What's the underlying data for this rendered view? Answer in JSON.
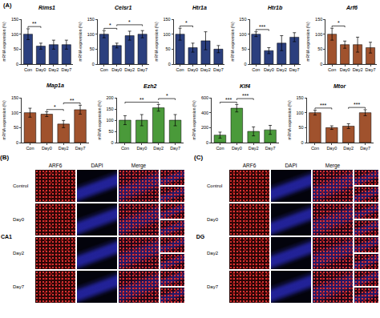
{
  "chart_data": [
    {
      "type": "bar",
      "title": "Rims1",
      "y_label": "mRNA expression (%)",
      "categories": [
        "Con",
        "Day0",
        "Day2",
        "Day7"
      ],
      "values": [
        100,
        60,
        65,
        65
      ],
      "errors": [
        18,
        10,
        15,
        15
      ],
      "color": "#2b3f7e",
      "ylim": [
        0,
        150
      ],
      "yticks": [
        0,
        50,
        100,
        150
      ],
      "grid": false,
      "significance": [
        {
          "from": "Con",
          "to": "Day0",
          "label": "**"
        }
      ]
    },
    {
      "type": "bar",
      "title": "Celsr1",
      "y_label": "mRNA expression (%)",
      "categories": [
        "Con",
        "Day0",
        "Day2",
        "Day7"
      ],
      "values": [
        100,
        62,
        95,
        100
      ],
      "errors": [
        12,
        8,
        15,
        12
      ],
      "color": "#2b3f7e",
      "ylim": [
        0,
        150
      ],
      "yticks": [
        0,
        50,
        100,
        150
      ],
      "grid": false,
      "significance": [
        {
          "from": "Con",
          "to": "Day0",
          "label": "*"
        },
        {
          "from": "Day0",
          "to": "Day7",
          "label": "*"
        }
      ]
    },
    {
      "type": "bar",
      "title": "Htr1a",
      "y_label": "mRNA expression (%)",
      "categories": [
        "Con",
        "Day0",
        "Day2",
        "Day7"
      ],
      "values": [
        100,
        55,
        78,
        50
      ],
      "errors": [
        20,
        15,
        30,
        12
      ],
      "color": "#2b3f7e",
      "ylim": [
        0,
        150
      ],
      "yticks": [
        0,
        50,
        100,
        150
      ],
      "grid": false,
      "significance": [
        {
          "from": "Con",
          "to": "Day0",
          "label": "*"
        }
      ]
    },
    {
      "type": "bar",
      "title": "Htr1b",
      "y_label": "mRNA expression (%)",
      "categories": [
        "Con",
        "Day0",
        "Day2",
        "Day7"
      ],
      "values": [
        100,
        45,
        70,
        90
      ],
      "errors": [
        8,
        10,
        25,
        15
      ],
      "color": "#2b3f7e",
      "ylim": [
        0,
        150
      ],
      "yticks": [
        0,
        50,
        100,
        150
      ],
      "grid": false,
      "significance": [
        {
          "from": "Con",
          "to": "Day0",
          "label": "***"
        }
      ]
    },
    {
      "type": "bar",
      "title": "Arf6",
      "y_label": "mRNA expression (%)",
      "categories": [
        "Con",
        "Day0",
        "Day2",
        "Day7"
      ],
      "values": [
        100,
        65,
        65,
        55
      ],
      "errors": [
        20,
        12,
        25,
        18
      ],
      "color": "#a0522d",
      "ylim": [
        0,
        150
      ],
      "yticks": [
        0,
        50,
        100,
        150
      ],
      "grid": false,
      "significance": [
        {
          "from": "Con",
          "to": "Day0",
          "label": "*"
        }
      ]
    },
    {
      "type": "bar",
      "title": "Map1a",
      "y_label": "mRNA expression (%)",
      "categories": [
        "Con",
        "Day0",
        "Day2",
        "Day7"
      ],
      "values": [
        100,
        95,
        62,
        110
      ],
      "errors": [
        15,
        8,
        12,
        15
      ],
      "color": "#a0522d",
      "ylim": [
        0,
        150
      ],
      "yticks": [
        0,
        50,
        100,
        150
      ],
      "grid": false,
      "significance": [
        {
          "from": "Day0",
          "to": "Day2",
          "label": "*"
        },
        {
          "from": "Day2",
          "to": "Day7",
          "label": "**"
        }
      ]
    },
    {
      "type": "bar",
      "title": "Ezh2",
      "y_label": "mRNA expression (%)",
      "categories": [
        "Con",
        "Day0",
        "Day2",
        "Day7"
      ],
      "values": [
        100,
        100,
        155,
        100
      ],
      "errors": [
        20,
        25,
        15,
        25
      ],
      "color": "#4a9a3a",
      "ylim": [
        0,
        200
      ],
      "yticks": [
        0,
        50,
        100,
        150,
        200
      ],
      "grid": false,
      "significance": [
        {
          "from": "Con",
          "to": "Day2",
          "label": "**"
        },
        {
          "from": "Day2",
          "to": "Day7",
          "label": "*"
        }
      ]
    },
    {
      "type": "bar",
      "title": "Klf4",
      "y_label": "mRNA expression (%)",
      "categories": [
        "Con",
        "Day0",
        "Day2",
        "Day7"
      ],
      "values": [
        100,
        460,
        150,
        170
      ],
      "errors": [
        40,
        50,
        60,
        60
      ],
      "color": "#4a9a3a",
      "ylim": [
        0,
        600
      ],
      "yticks": [
        0,
        200,
        400,
        600
      ],
      "grid": false,
      "significance": [
        {
          "from": "Con",
          "to": "Day0",
          "label": "***"
        },
        {
          "from": "Day0",
          "to": "Day2",
          "label": "***"
        }
      ]
    },
    {
      "type": "bar",
      "title": "Mtor",
      "y_label": "mRNA expression (%)",
      "categories": [
        "Con",
        "Day0",
        "Day2",
        "Day7"
      ],
      "values": [
        100,
        50,
        55,
        100
      ],
      "errors": [
        8,
        6,
        8,
        10
      ],
      "color": "#a0522d",
      "ylim": [
        0,
        150
      ],
      "yticks": [
        0,
        50,
        100,
        150
      ],
      "grid": false,
      "significance": [
        {
          "from": "Con",
          "to": "Day0",
          "label": "***"
        },
        {
          "from": "Day2",
          "to": "Day7",
          "label": "***"
        }
      ]
    }
  ],
  "figure": {
    "chart_panel_label": "(A)",
    "image_panels": [
      {
        "label": "(B)",
        "region": "CA1",
        "columns": [
          "ARF6",
          "DAPI",
          "Merge"
        ],
        "rows": [
          "Control",
          "Day0",
          "Day2",
          "Day7"
        ]
      },
      {
        "label": "(C)",
        "region": "DG",
        "columns": [
          "ARF6",
          "DAPI",
          "Merge"
        ],
        "rows": [
          "Control",
          "Day0",
          "Day2",
          "Day7"
        ]
      }
    ]
  }
}
